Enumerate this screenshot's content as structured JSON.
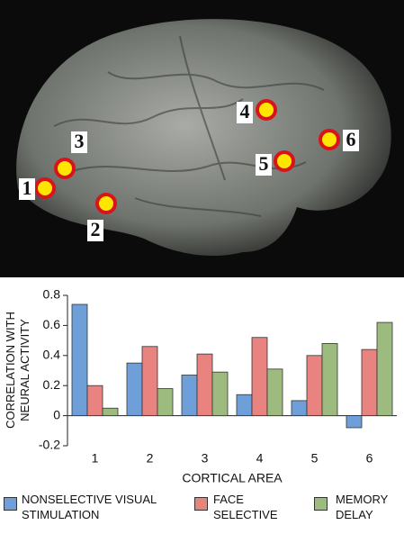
{
  "brain": {
    "labels": [
      "1",
      "2",
      "3",
      "4",
      "5",
      "6"
    ]
  },
  "chart_data": {
    "type": "bar",
    "categories": [
      "1",
      "2",
      "3",
      "4",
      "5",
      "6"
    ],
    "series": [
      {
        "name": "NONSELECTIVE VISUAL STIMULATION",
        "color": "#6f9fd8",
        "values": [
          0.74,
          0.35,
          0.27,
          0.14,
          0.1,
          -0.08
        ]
      },
      {
        "name": "FACE SELECTIVE",
        "color": "#e8837f",
        "values": [
          0.2,
          0.46,
          0.41,
          0.52,
          0.4,
          0.44
        ]
      },
      {
        "name": "MEMORY DELAY",
        "color": "#9dbb7e",
        "values": [
          0.05,
          0.18,
          0.29,
          0.31,
          0.48,
          0.62
        ]
      }
    ],
    "xlabel": "CORTICAL AREA",
    "ylabel": "CORRELATION WITH NEURAL ACTIVITY",
    "ylim": [
      -0.2,
      0.8
    ],
    "yticks": [
      -0.2,
      0,
      0.2,
      0.4,
      0.6,
      0.8
    ],
    "legend": "bottom"
  }
}
